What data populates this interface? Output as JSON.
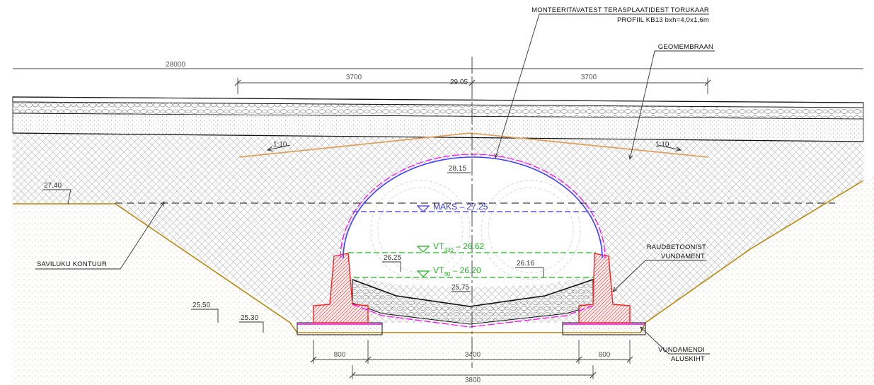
{
  "labels": {
    "culvert_title_1": "MONTEERITAVATEST TERASPLAATIDEST TORUKAAR",
    "culvert_title_2": "PROFIIL KB13 bxh=4,0x1,6m",
    "geomembrane": "GEOMEMBRAAN",
    "excavation": "SAVILUKU KONTUUR",
    "foundation_1": "RAUDBETOONIST",
    "foundation_2": "VUNDAMENT",
    "subbase_1": "VUNDAMENDI",
    "subbase_2": "ALUSKIHT"
  },
  "dimensions": {
    "total_width": "28000",
    "lane_left": "3700",
    "lane_right": "3700",
    "footing_left": "800",
    "footing_right": "800",
    "span_inner": "3400",
    "span_outer": "3800"
  },
  "levels": {
    "road_crown": "29.05",
    "arch_top": "28.15",
    "ground": "27.40",
    "inner_left": "26.25",
    "inner_right": "26.16",
    "invert": "25.75",
    "footing_top": "25.50",
    "footing_bottom": "25.30"
  },
  "slopes": {
    "left": "1:10",
    "right": "1:10"
  },
  "water_levels": {
    "max_label": "MAKS",
    "max_value": "27.25",
    "vt330_prefix": "VT",
    "vt330_sub": "330",
    "vt330_value": "26.62",
    "vt30_prefix": "VT",
    "vt30_sub": "30",
    "vt30_value": "26.20",
    "separator": "–"
  },
  "colors": {
    "arch": "#4040ff",
    "membrane": "#ff00ff",
    "water_max": "#3a3ae0",
    "water_vt": "#22b022",
    "concrete": "#ff3030",
    "geomembrane_line": "#e0a060",
    "excavation_line": "#b8860b"
  }
}
